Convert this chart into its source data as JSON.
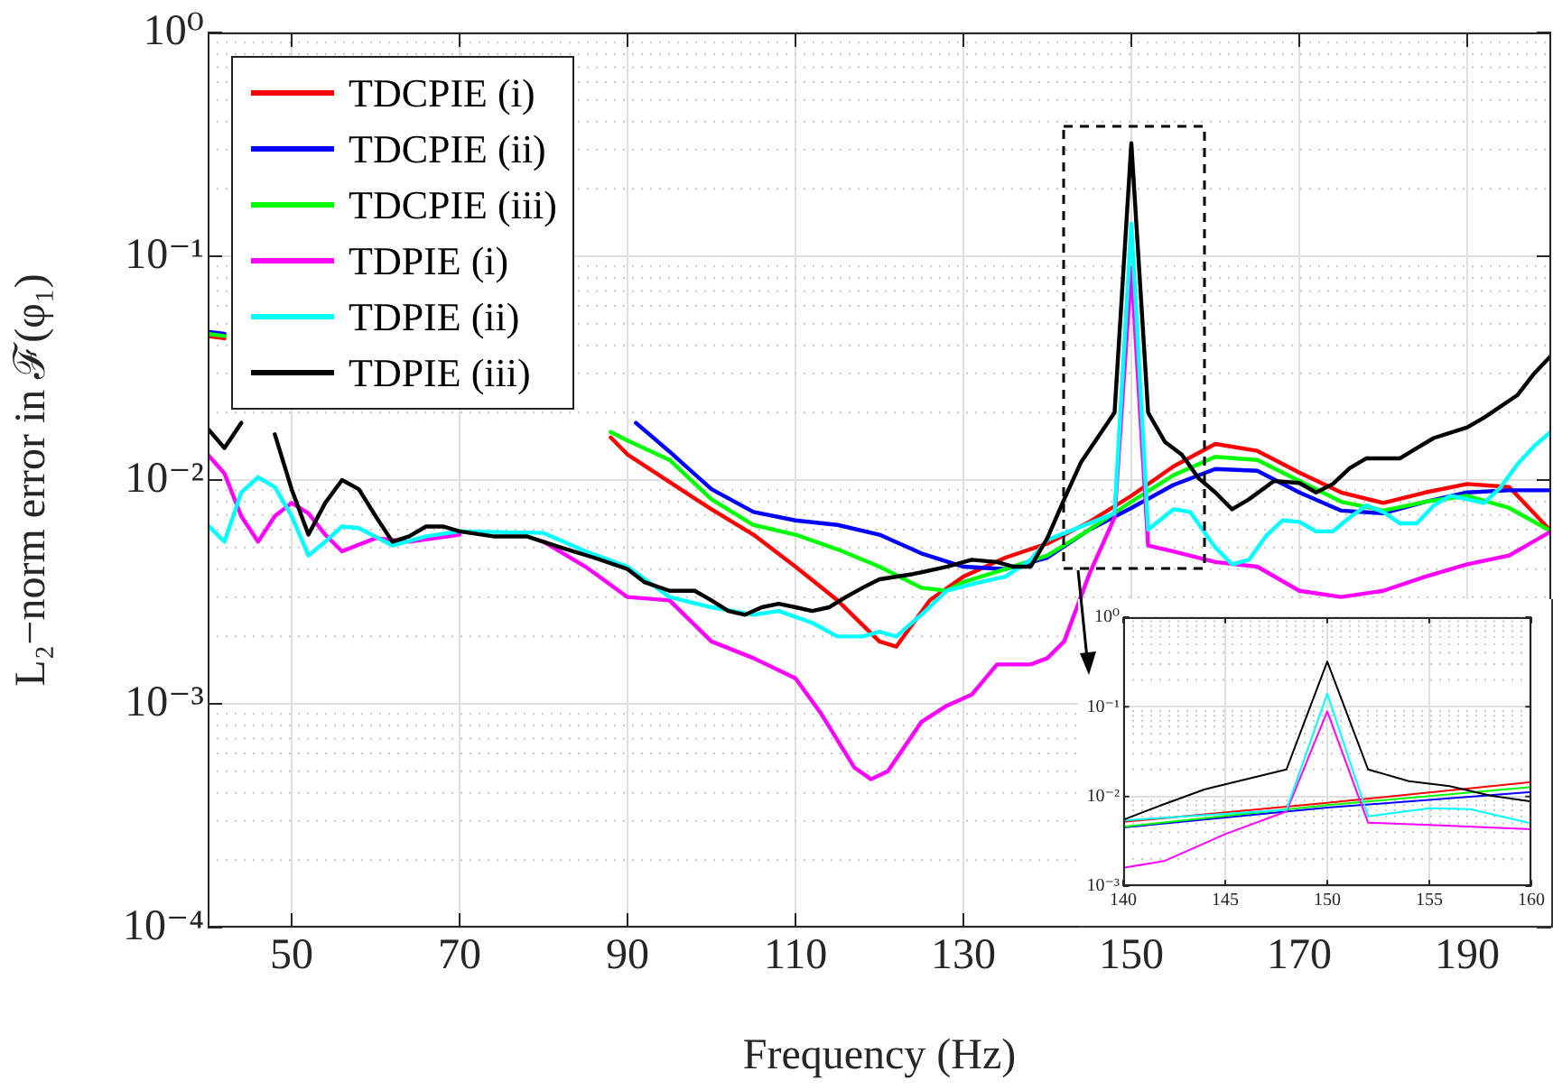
{
  "chart_data": [
    {
      "type": "line",
      "xlabel": "Frequency (Hz)",
      "ylabel": "L₂−norm error in ℱ(φ₁)",
      "log": "y",
      "grid": true,
      "legend": "top left",
      "xlim": [
        40,
        200
      ],
      "xticks": [
        50,
        70,
        90,
        110,
        130,
        150,
        170,
        190
      ],
      "ylim": [
        0.0001,
        1
      ],
      "yticks": [
        {
          "value": 0.0001,
          "label": "10⁻⁴"
        },
        {
          "value": 0.001,
          "label": "10⁻³"
        },
        {
          "value": 0.01,
          "label": "10⁻²"
        },
        {
          "value": 0.1,
          "label": "10⁻¹"
        },
        {
          "value": 1,
          "label": "10⁰"
        }
      ],
      "series": [
        {
          "name": "TDCPIE (i)",
          "color": "#ff0000",
          "x": [
            40,
            42,
            45,
            88,
            90,
            95,
            100,
            105,
            110,
            115,
            120,
            122,
            126,
            130,
            135,
            140,
            145,
            150,
            155,
            160,
            165,
            170,
            175,
            180,
            185,
            190,
            195,
            200
          ],
          "values": [
            0.044,
            0.043,
            null,
            0.0155,
            0.013,
            0.0098,
            0.0074,
            0.0057,
            0.0041,
            0.0029,
            0.0019,
            0.0018,
            0.0029,
            0.0037,
            0.0045,
            0.0052,
            0.0065,
            0.0085,
            0.0115,
            0.0145,
            0.0135,
            0.0108,
            0.0088,
            0.0079,
            0.0088,
            0.0096,
            0.0093,
            0.0059
          ]
        },
        {
          "name": "TDCPIE (ii)",
          "color": "#0000ff",
          "x": [
            40,
            42,
            45,
            91,
            95,
            100,
            105,
            110,
            115,
            120,
            125,
            130,
            135,
            140,
            145,
            150,
            155,
            160,
            165,
            170,
            175,
            180,
            185,
            190,
            195,
            200
          ],
          "values": [
            0.046,
            0.045,
            null,
            0.018,
            0.0134,
            0.0091,
            0.0072,
            0.0066,
            0.0063,
            0.0057,
            0.0047,
            0.0041,
            0.004,
            0.0045,
            0.006,
            0.0075,
            0.0095,
            0.0112,
            0.011,
            0.0088,
            0.0073,
            0.0071,
            0.008,
            0.0088,
            0.009,
            0.009
          ]
        },
        {
          "name": "TDCPIE (iii)",
          "color": "#00ff00",
          "x": [
            40,
            42,
            45,
            88,
            90,
            95,
            100,
            105,
            110,
            115,
            120,
            125,
            128,
            130,
            135,
            140,
            145,
            150,
            155,
            160,
            165,
            170,
            175,
            180,
            185,
            190,
            195,
            200
          ],
          "values": [
            0.045,
            0.044,
            null,
            0.0164,
            0.015,
            0.0123,
            0.0082,
            0.0063,
            0.0057,
            0.0049,
            0.0041,
            0.0033,
            0.0032,
            0.0035,
            0.004,
            0.0046,
            0.006,
            0.008,
            0.0105,
            0.0127,
            0.0123,
            0.0099,
            0.008,
            0.0073,
            0.008,
            0.0085,
            0.0075,
            0.0059
          ]
        },
        {
          "name": "TDPIE (i)",
          "color": "#ff00ff",
          "x": [
            40,
            42,
            44,
            46,
            48,
            50,
            52,
            54,
            56,
            60,
            64,
            70,
            76,
            80,
            85,
            90,
            95,
            100,
            105,
            110,
            113,
            117,
            119,
            121,
            125,
            128,
            131,
            134,
            136,
            138,
            140,
            142,
            145,
            148,
            150,
            152,
            155,
            160,
            165,
            170,
            175,
            180,
            185,
            190,
            195,
            200
          ],
          "values": [
            0.013,
            0.0107,
            0.0069,
            0.0053,
            0.0069,
            0.0079,
            0.0071,
            0.0057,
            0.0048,
            0.0055,
            0.0053,
            0.0057,
            null,
            0.0053,
            0.0041,
            0.003,
            0.0029,
            0.0019,
            0.0016,
            0.0013,
            0.00091,
            0.00052,
            0.00046,
            0.0005,
            0.00083,
            0.00098,
            0.0011,
            0.0015,
            0.0015,
            0.0015,
            0.0016,
            0.0019,
            0.0038,
            0.0068,
            0.089,
            0.0051,
            0.0048,
            0.0043,
            0.0041,
            0.0032,
            0.003,
            0.0032,
            0.0037,
            0.0042,
            0.0046,
            0.0059
          ]
        },
        {
          "name": "TDPIE (ii)",
          "color": "#00ffff",
          "x": [
            40,
            42,
            44,
            46,
            48,
            50,
            52,
            54,
            56,
            58,
            62,
            66,
            70,
            80,
            85,
            90,
            95,
            100,
            105,
            108,
            112,
            115,
            118,
            120,
            122,
            125,
            128,
            132,
            135,
            138,
            140,
            148,
            150,
            152,
            155,
            157,
            160,
            162,
            164,
            166,
            168,
            170,
            172,
            174,
            176,
            178,
            180,
            182,
            184,
            186,
            188,
            190,
            192,
            194,
            196,
            198,
            200
          ],
          "values": [
            0.0063,
            0.0053,
            0.0088,
            0.0103,
            0.0093,
            0.0069,
            0.0046,
            0.0053,
            0.0062,
            0.0061,
            0.0051,
            0.0056,
            0.0059,
            0.0058,
            0.0048,
            0.0041,
            0.003,
            0.0027,
            0.0025,
            0.0026,
            0.0023,
            0.002,
            0.002,
            0.0021,
            0.002,
            0.0025,
            0.0032,
            0.0035,
            0.0037,
            0.0044,
            0.0054,
            0.0071,
            0.14,
            0.006,
            0.0074,
            0.0072,
            0.005,
            0.0042,
            0.0044,
            0.0056,
            0.0066,
            0.0065,
            0.0059,
            0.0059,
            0.0068,
            0.0077,
            0.0072,
            0.0064,
            0.0064,
            0.0077,
            0.0085,
            0.0082,
            0.0079,
            0.0093,
            0.0118,
            0.0142,
            0.0165
          ]
        },
        {
          "name": "TDPIE (iii)",
          "color": "#000000",
          "x": [
            40,
            42,
            44,
            46,
            48,
            50,
            52,
            54,
            56,
            58,
            60,
            62,
            64,
            66,
            68,
            70,
            74,
            78,
            82,
            86,
            90,
            92,
            95,
            98,
            100,
            102,
            104,
            106,
            108,
            110,
            112,
            114,
            116,
            118,
            120,
            124,
            128,
            131,
            134,
            136,
            138,
            140,
            142,
            144,
            148,
            150,
            152,
            154,
            156,
            158,
            160,
            162,
            164,
            167,
            170,
            172,
            174,
            176,
            178,
            182,
            184,
            186,
            190,
            192,
            196,
            198,
            200
          ],
          "values": [
            0.017,
            0.0139,
            0.018,
            null,
            0.016,
            0.0091,
            0.0057,
            0.0079,
            0.01,
            0.0091,
            0.0069,
            0.0053,
            0.0056,
            0.0062,
            0.0062,
            0.0059,
            0.0056,
            0.0056,
            0.005,
            0.0045,
            0.004,
            0.0035,
            0.0032,
            0.0032,
            0.0029,
            0.0026,
            0.0025,
            0.0027,
            0.0028,
            0.0027,
            0.0026,
            0.0027,
            0.003,
            0.0033,
            0.0036,
            0.0038,
            0.0041,
            0.0044,
            0.0043,
            0.0041,
            0.0041,
            0.0055,
            0.0082,
            0.012,
            0.02,
            0.32,
            0.02,
            0.0148,
            0.013,
            0.0102,
            0.0088,
            0.0074,
            0.0082,
            0.0099,
            0.0097,
            0.0088,
            0.0096,
            0.0113,
            0.0125,
            0.0125,
            0.0139,
            0.0154,
            0.0172,
            0.019,
            0.024,
            0.03,
            0.036
          ]
        }
      ]
    },
    {
      "type": "line",
      "log": "y",
      "grid": true,
      "xlim": [
        140,
        160
      ],
      "xticks": [
        140,
        145,
        150,
        155,
        160
      ],
      "ylim": [
        0.001,
        1
      ],
      "yticks": [
        {
          "value": 0.001,
          "label": "10⁻³"
        },
        {
          "value": 0.01,
          "label": "10⁻²"
        },
        {
          "value": 0.1,
          "label": "10⁻¹"
        },
        {
          "value": 1,
          "label": "10⁰"
        }
      ],
      "series": [
        {
          "color": "#ff0000",
          "x": [
            140,
            150,
            160
          ],
          "values": [
            0.0052,
            0.0085,
            0.0145
          ]
        },
        {
          "color": "#0000ff",
          "x": [
            140,
            150,
            160
          ],
          "values": [
            0.0045,
            0.0075,
            0.0112
          ]
        },
        {
          "color": "#00ff00",
          "x": [
            140,
            150,
            160
          ],
          "values": [
            0.0046,
            0.008,
            0.0127
          ]
        },
        {
          "color": "#ff00ff",
          "x": [
            140,
            142,
            145,
            148,
            150,
            152,
            155,
            160
          ],
          "values": [
            0.0016,
            0.0019,
            0.0038,
            0.0068,
            0.089,
            0.0051,
            0.0048,
            0.0043
          ]
        },
        {
          "color": "#00ffff",
          "x": [
            140,
            148,
            150,
            152,
            155,
            157,
            160
          ],
          "values": [
            0.0054,
            0.0071,
            0.14,
            0.006,
            0.0074,
            0.0072,
            0.005
          ]
        },
        {
          "color": "#000000",
          "x": [
            140,
            142,
            144,
            148,
            150,
            152,
            154,
            156,
            158,
            160
          ],
          "values": [
            0.0055,
            0.0082,
            0.012,
            0.02,
            0.32,
            0.02,
            0.0148,
            0.013,
            0.0102,
            0.0088
          ]
        }
      ]
    }
  ]
}
